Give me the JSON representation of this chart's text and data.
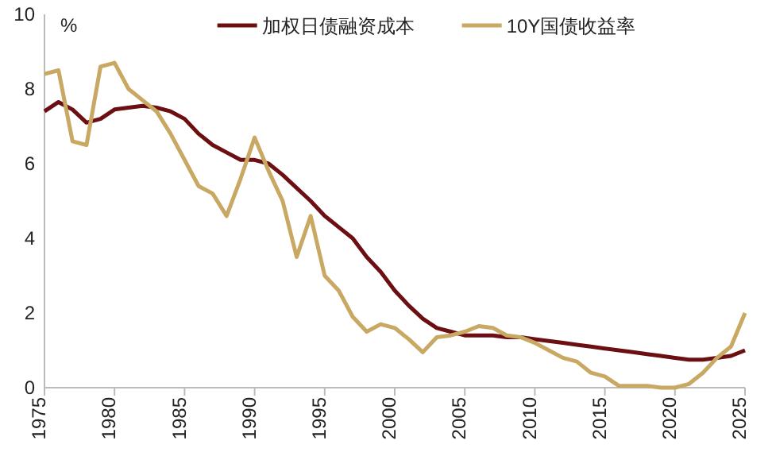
{
  "chart_data": {
    "type": "line",
    "ylabel": "%",
    "x": [
      1975,
      1976,
      1977,
      1978,
      1979,
      1980,
      1981,
      1982,
      1983,
      1984,
      1985,
      1986,
      1987,
      1988,
      1989,
      1990,
      1991,
      1992,
      1993,
      1994,
      1995,
      1996,
      1997,
      1998,
      1999,
      2000,
      2001,
      2002,
      2003,
      2004,
      2005,
      2006,
      2007,
      2008,
      2009,
      2010,
      2011,
      2012,
      2013,
      2014,
      2015,
      2016,
      2017,
      2018,
      2019,
      2020,
      2021,
      2022,
      2023,
      2024,
      2025
    ],
    "series": [
      {
        "name": "加权日债融资成本",
        "color": "#6b0f12",
        "values": [
          7.4,
          7.65,
          7.45,
          7.1,
          7.2,
          7.45,
          7.5,
          7.55,
          7.5,
          7.4,
          7.2,
          6.8,
          6.5,
          6.3,
          6.1,
          6.1,
          6.0,
          5.7,
          5.35,
          5.0,
          4.6,
          4.3,
          4.0,
          3.5,
          3.1,
          2.6,
          2.2,
          1.85,
          1.6,
          1.5,
          1.4,
          1.4,
          1.4,
          1.35,
          1.35,
          1.3,
          1.25,
          1.2,
          1.15,
          1.1,
          1.05,
          1.0,
          0.95,
          0.9,
          0.85,
          0.8,
          0.75,
          0.75,
          0.8,
          0.85,
          1.0
        ]
      },
      {
        "name": "10Y国债收益率",
        "color": "#c8a862",
        "values": [
          8.4,
          8.5,
          6.6,
          6.5,
          8.6,
          8.7,
          8.0,
          7.7,
          7.4,
          6.8,
          6.1,
          5.4,
          5.2,
          4.6,
          5.6,
          6.7,
          5.8,
          5.0,
          3.5,
          4.6,
          3.0,
          2.6,
          1.9,
          1.5,
          1.7,
          1.6,
          1.3,
          0.95,
          1.35,
          1.4,
          1.5,
          1.65,
          1.6,
          1.4,
          1.35,
          1.2,
          1.0,
          0.8,
          0.7,
          0.4,
          0.3,
          0.05,
          0.05,
          0.05,
          0.0,
          0.0,
          0.1,
          0.4,
          0.8,
          1.1,
          2.0
        ]
      }
    ],
    "xlim": [
      1975,
      2025
    ],
    "xticks": [
      1975,
      1980,
      1985,
      1990,
      1995,
      2000,
      2005,
      2010,
      2015,
      2020,
      2025
    ],
    "ylim": [
      0,
      10
    ],
    "yticks": [
      0,
      2,
      4,
      6,
      8,
      10
    ],
    "grid": false,
    "legend": "top"
  }
}
